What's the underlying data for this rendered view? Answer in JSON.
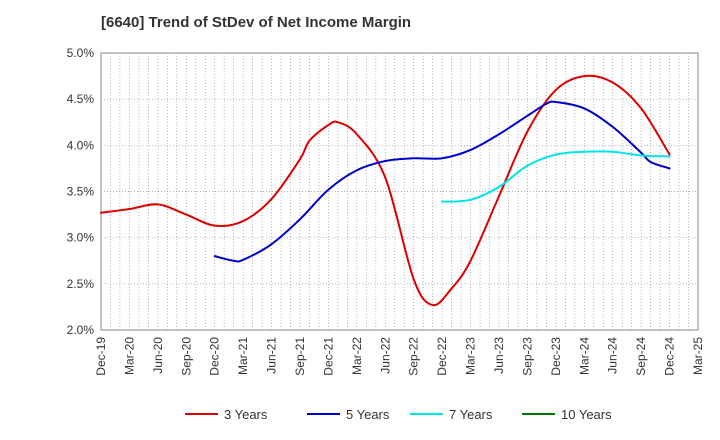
{
  "chart_data": {
    "type": "line",
    "title": "[6640]  Trend of StDev of Net Income Margin",
    "xlabel": "",
    "ylabel": "",
    "ylim": [
      2.0,
      5.0
    ],
    "y_ticks": [
      "2.0%",
      "2.5%",
      "3.0%",
      "3.5%",
      "4.0%",
      "4.5%",
      "5.0%"
    ],
    "x_ticks": [
      "Dec-19",
      "Mar-20",
      "Jun-20",
      "Sep-20",
      "Dec-20",
      "Mar-21",
      "Jun-21",
      "Sep-21",
      "Dec-21",
      "Mar-22",
      "Jun-22",
      "Sep-22",
      "Dec-22",
      "Mar-23",
      "Jun-23",
      "Sep-23",
      "Dec-23",
      "Mar-24",
      "Jun-24",
      "Sep-24",
      "Dec-24",
      "Mar-25"
    ],
    "grid": true,
    "legend_position": "bottom",
    "series": [
      {
        "name": "3 Years",
        "color": "#dd0000",
        "points": [
          [
            "Dec-19",
            3.27
          ],
          [
            "Mar-20",
            3.31
          ],
          [
            "Jun-20",
            3.36
          ],
          [
            "Sep-20",
            3.25
          ],
          [
            "Dec-20",
            3.13
          ],
          [
            "Mar-21",
            3.18
          ],
          [
            "Jun-21",
            3.42
          ],
          [
            "Sep-21",
            3.85
          ],
          [
            "Oct-21",
            4.05
          ],
          [
            "Dec-21",
            4.22
          ],
          [
            "Jan-22",
            4.25
          ],
          [
            "Mar-22",
            4.12
          ],
          [
            "Jun-22",
            3.65
          ],
          [
            "Sep-22",
            2.55
          ],
          [
            "Nov-22",
            2.27
          ],
          [
            "Jan-23",
            2.45
          ],
          [
            "Mar-23",
            2.75
          ],
          [
            "Jun-23",
            3.45
          ],
          [
            "Sep-23",
            4.15
          ],
          [
            "Dec-23",
            4.6
          ],
          [
            "Mar-24",
            4.75
          ],
          [
            "Jun-24",
            4.68
          ],
          [
            "Sep-24",
            4.4
          ],
          [
            "Dec-24",
            3.9
          ]
        ]
      },
      {
        "name": "5 Years",
        "color": "#0000cc",
        "points": [
          [
            "Dec-20",
            2.8
          ],
          [
            "Feb-21",
            2.75
          ],
          [
            "Mar-21",
            2.76
          ],
          [
            "Jun-21",
            2.93
          ],
          [
            "Sep-21",
            3.2
          ],
          [
            "Dec-21",
            3.52
          ],
          [
            "Mar-22",
            3.73
          ],
          [
            "Jun-22",
            3.83
          ],
          [
            "Sep-22",
            3.86
          ],
          [
            "Dec-22",
            3.86
          ],
          [
            "Mar-23",
            3.95
          ],
          [
            "Jun-23",
            4.12
          ],
          [
            "Sep-23",
            4.32
          ],
          [
            "Nov-23",
            4.45
          ],
          [
            "Dec-23",
            4.47
          ],
          [
            "Mar-24",
            4.4
          ],
          [
            "Jun-24",
            4.2
          ],
          [
            "Sep-24",
            3.92
          ],
          [
            "Oct-24",
            3.82
          ],
          [
            "Dec-24",
            3.75
          ]
        ]
      },
      {
        "name": "7 Years",
        "color": "#00e5e5",
        "points": [
          [
            "Dec-22",
            3.39
          ],
          [
            "Mar-23",
            3.41
          ],
          [
            "Jun-23",
            3.55
          ],
          [
            "Sep-23",
            3.78
          ],
          [
            "Dec-23",
            3.9
          ],
          [
            "Mar-24",
            3.93
          ],
          [
            "Jun-24",
            3.93
          ],
          [
            "Sep-24",
            3.89
          ],
          [
            "Dec-24",
            3.88
          ]
        ]
      },
      {
        "name": "10 Years",
        "color": "#007700",
        "points": []
      }
    ]
  }
}
